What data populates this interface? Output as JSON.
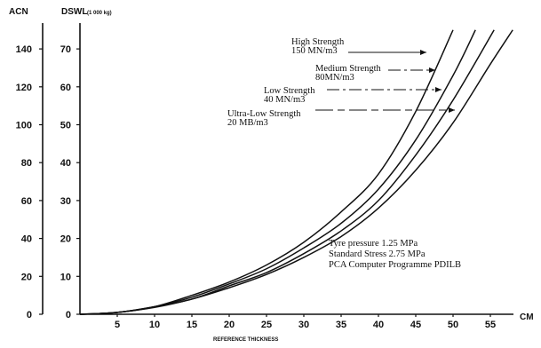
{
  "chart_data": {
    "type": "line",
    "title": "",
    "left_axis": {
      "label": "ACN",
      "ticks": [
        0,
        20,
        40,
        60,
        80,
        100,
        120,
        140
      ],
      "range": [
        0,
        150
      ]
    },
    "right_axis": {
      "label": "DSWL",
      "unit": "(1 000 kg)",
      "ticks": [
        0,
        10,
        20,
        30,
        40,
        50,
        60,
        70
      ],
      "range": [
        0,
        75
      ]
    },
    "x_axis": {
      "label": "REFERENCE THICKNESS",
      "unit": "CM",
      "ticks": [
        5,
        10,
        15,
        20,
        25,
        30,
        35,
        40,
        45,
        50,
        55
      ],
      "range": [
        0,
        58
      ]
    },
    "grid": false,
    "series": [
      {
        "name": "High Strength 150 MN/m3",
        "label_lines": [
          "High Strength",
          "150 MN/m3"
        ],
        "x": [
          0,
          5,
          10,
          15,
          20,
          25,
          30,
          35,
          40,
          45,
          50
        ],
        "y": [
          0,
          0.5,
          2,
          5,
          8.5,
          13,
          19,
          27,
          37,
          53.5,
          75
        ]
      },
      {
        "name": "Medium Strength 80MN/m3",
        "label_lines": [
          "Medium Strength",
          "80MN/m3"
        ],
        "x": [
          0,
          5,
          10,
          15,
          20,
          25,
          30,
          35,
          40,
          45,
          50,
          53
        ],
        "y": [
          0,
          0.5,
          2,
          4.5,
          8,
          12,
          17.5,
          24,
          33,
          46,
          63,
          75
        ]
      },
      {
        "name": "Low Strength 40 MN/m3",
        "label_lines": [
          "Low Strength",
          "40 MN/m3"
        ],
        "x": [
          0,
          5,
          10,
          15,
          20,
          25,
          30,
          35,
          40,
          45,
          50,
          55.5
        ],
        "y": [
          0,
          0.5,
          2,
          4,
          7.5,
          11,
          16,
          22,
          30,
          42,
          56.5,
          75
        ]
      },
      {
        "name": "Ultra-Low Strength 20 MB/m3",
        "label_lines": [
          "Ultra-Low Strength",
          "20 MB/m3"
        ],
        "x": [
          0,
          5,
          10,
          15,
          20,
          25,
          30,
          35,
          40,
          45,
          50,
          55,
          58
        ],
        "y": [
          0,
          0.5,
          1.8,
          4,
          7,
          10.5,
          15,
          20.5,
          28,
          38,
          50.5,
          66,
          75
        ]
      }
    ],
    "notes": [
      "Tyre pressure 1.25 MPa",
      "Standard Stress 2.75 MPa",
      "PCA Computer Programme PDILB"
    ]
  }
}
